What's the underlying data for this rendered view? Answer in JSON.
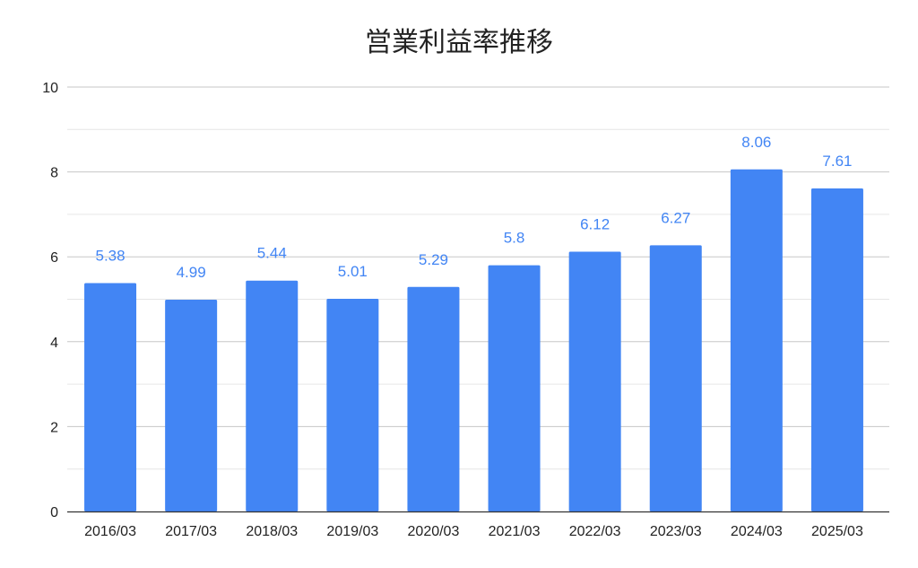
{
  "chart_data": {
    "type": "bar",
    "title": "営業利益率推移",
    "xlabel": "",
    "ylabel": "",
    "categories": [
      "2016/03",
      "2017/03",
      "2018/03",
      "2019/03",
      "2020/03",
      "2021/03",
      "2022/03",
      "2023/03",
      "2024/03",
      "2025/03"
    ],
    "values": [
      5.38,
      4.99,
      5.44,
      5.01,
      5.29,
      5.8,
      6.12,
      6.27,
      8.06,
      7.61
    ],
    "data_labels": [
      "5.38",
      "4.99",
      "5.44",
      "5.01",
      "5.29",
      "5.8",
      "6.12",
      "6.27",
      "8.06",
      "7.61"
    ],
    "ylim": [
      0,
      10
    ],
    "yticks": [
      "0",
      "2",
      "4",
      "6",
      "8",
      "10"
    ],
    "grid": true,
    "colors": {
      "bar": "#4285f4",
      "data_label": "#4285f4",
      "grid_major": "#c7c7c7",
      "grid_minor": "#e6e6e6",
      "axis_text": "#222222"
    }
  }
}
